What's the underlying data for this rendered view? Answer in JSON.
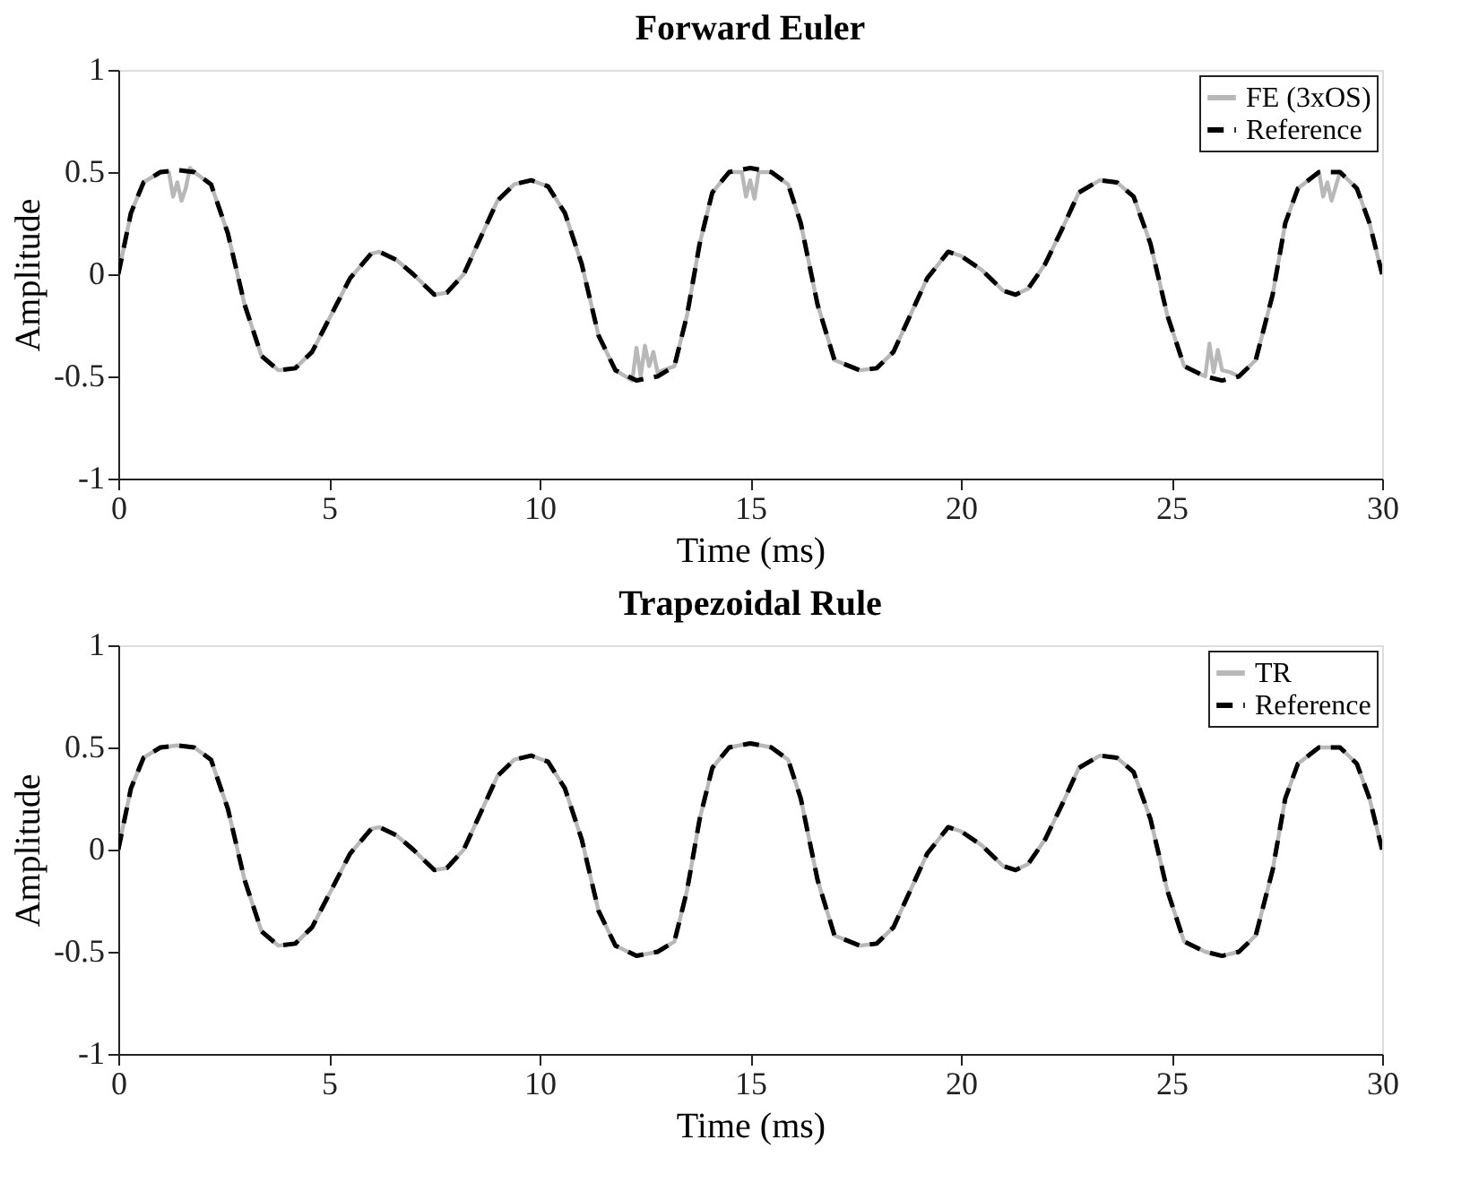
{
  "chart_data": [
    {
      "type": "line",
      "title": "Forward Euler",
      "xlabel": "Time (ms)",
      "ylabel": "Amplitude",
      "xlim": [
        0,
        30
      ],
      "ylim": [
        -1,
        1
      ],
      "xticks": [
        0,
        5,
        10,
        15,
        20,
        25,
        30
      ],
      "yticks": [
        -1,
        -0.5,
        0,
        0.5,
        1
      ],
      "grid": false,
      "legend": "top right",
      "series": [
        {
          "name": "FE (3xOS)",
          "color": "#b8b8b8",
          "line_style": "solid",
          "x": [
            0,
            0.3,
            0.6,
            1,
            1.2,
            1.3,
            1.4,
            1.5,
            1.6,
            1.7,
            1.8,
            2.2,
            2.6,
            3,
            3.4,
            3.8,
            4.2,
            4.6,
            5,
            5.5,
            6,
            6.2,
            6.6,
            7,
            7.5,
            7.8,
            8.2,
            8.6,
            9,
            9.4,
            9.8,
            10.2,
            10.6,
            11,
            11.4,
            11.8,
            12.2,
            12.3,
            12.4,
            12.5,
            12.6,
            12.7,
            12.8,
            13.2,
            13.5,
            13.8,
            14.1,
            14.5,
            14.8,
            14.9,
            15,
            15.1,
            15.2,
            15.5,
            15.9,
            16.2,
            16.6,
            17,
            17.6,
            18,
            18.4,
            18.8,
            19.2,
            19.7,
            20,
            20.5,
            21,
            21.3,
            21.6,
            22,
            22.4,
            22.8,
            23.3,
            23.7,
            24.1,
            24.5,
            24.9,
            25.3,
            25.8,
            25.9,
            26,
            26.1,
            26.2,
            26.4,
            26.6,
            27,
            27.4,
            27.7,
            28,
            28.5,
            28.6,
            28.7,
            28.8,
            29,
            29.4,
            29.7,
            30
          ],
          "values": [
            0,
            0.3,
            0.45,
            0.5,
            0.5,
            0.38,
            0.45,
            0.36,
            0.42,
            0.52,
            0.5,
            0.44,
            0.2,
            -0.15,
            -0.4,
            -0.47,
            -0.46,
            -0.38,
            -0.22,
            -0.02,
            0.1,
            0.11,
            0.07,
            0,
            -0.1,
            -0.09,
            0,
            0.18,
            0.36,
            0.44,
            0.46,
            0.43,
            0.3,
            0.05,
            -0.3,
            -0.47,
            -0.52,
            -0.36,
            -0.5,
            -0.35,
            -0.45,
            -0.38,
            -0.48,
            -0.45,
            -0.2,
            0.15,
            0.4,
            0.5,
            0.5,
            0.38,
            0.46,
            0.37,
            0.5,
            0.5,
            0.44,
            0.25,
            -0.15,
            -0.42,
            -0.47,
            -0.46,
            -0.38,
            -0.2,
            -0.02,
            0.11,
            0.09,
            0.02,
            -0.08,
            -0.1,
            -0.07,
            0.05,
            0.22,
            0.4,
            0.46,
            0.45,
            0.38,
            0.15,
            -0.2,
            -0.45,
            -0.5,
            -0.34,
            -0.48,
            -0.37,
            -0.47,
            -0.48,
            -0.5,
            -0.42,
            -0.1,
            0.25,
            0.42,
            0.5,
            0.38,
            0.45,
            0.36,
            0.5,
            0.42,
            0.25,
            0
          ]
        },
        {
          "name": "Reference",
          "color": "#000000",
          "line_style": "dashed",
          "x": [
            0,
            0.3,
            0.6,
            1,
            1.4,
            1.8,
            2.2,
            2.6,
            3,
            3.4,
            3.8,
            4.2,
            4.6,
            5,
            5.5,
            6,
            6.2,
            6.6,
            7,
            7.5,
            7.8,
            8.2,
            8.6,
            9,
            9.4,
            9.8,
            10.2,
            10.6,
            11,
            11.4,
            11.8,
            12.3,
            12.8,
            13.2,
            13.5,
            13.8,
            14.1,
            14.5,
            15,
            15.5,
            15.9,
            16.2,
            16.6,
            17,
            17.6,
            18,
            18.4,
            18.8,
            19.2,
            19.7,
            20,
            20.5,
            21,
            21.3,
            21.6,
            22,
            22.4,
            22.8,
            23.3,
            23.7,
            24.1,
            24.5,
            24.9,
            25.3,
            25.8,
            26.2,
            26.6,
            27,
            27.4,
            27.7,
            28,
            28.5,
            29,
            29.4,
            29.7,
            30
          ],
          "values": [
            0,
            0.3,
            0.45,
            0.5,
            0.51,
            0.5,
            0.44,
            0.2,
            -0.15,
            -0.4,
            -0.47,
            -0.46,
            -0.38,
            -0.22,
            -0.02,
            0.1,
            0.11,
            0.07,
            0,
            -0.1,
            -0.09,
            0,
            0.18,
            0.36,
            0.44,
            0.46,
            0.43,
            0.3,
            0.05,
            -0.3,
            -0.47,
            -0.52,
            -0.5,
            -0.45,
            -0.2,
            0.15,
            0.4,
            0.5,
            0.52,
            0.5,
            0.44,
            0.25,
            -0.15,
            -0.42,
            -0.47,
            -0.46,
            -0.38,
            -0.2,
            -0.02,
            0.11,
            0.09,
            0.02,
            -0.08,
            -0.1,
            -0.07,
            0.05,
            0.22,
            0.4,
            0.46,
            0.45,
            0.38,
            0.15,
            -0.2,
            -0.45,
            -0.5,
            -0.52,
            -0.5,
            -0.42,
            -0.1,
            0.25,
            0.42,
            0.5,
            0.5,
            0.42,
            0.25,
            0
          ]
        }
      ]
    },
    {
      "type": "line",
      "title": "Trapezoidal Rule",
      "xlabel": "Time (ms)",
      "ylabel": "Amplitude",
      "xlim": [
        0,
        30
      ],
      "ylim": [
        -1,
        1
      ],
      "xticks": [
        0,
        5,
        10,
        15,
        20,
        25,
        30
      ],
      "yticks": [
        -1,
        -0.5,
        0,
        0.5,
        1
      ],
      "grid": false,
      "legend": "top right",
      "series": [
        {
          "name": "TR",
          "color": "#b8b8b8",
          "line_style": "solid",
          "x": [
            0,
            0.3,
            0.6,
            1,
            1.4,
            1.8,
            2.2,
            2.6,
            3,
            3.4,
            3.8,
            4.2,
            4.6,
            5,
            5.5,
            6,
            6.2,
            6.6,
            7,
            7.5,
            7.8,
            8.2,
            8.6,
            9,
            9.4,
            9.8,
            10.2,
            10.6,
            11,
            11.4,
            11.8,
            12.3,
            12.8,
            13.2,
            13.5,
            13.8,
            14.1,
            14.5,
            15,
            15.5,
            15.9,
            16.2,
            16.6,
            17,
            17.6,
            18,
            18.4,
            18.8,
            19.2,
            19.7,
            20,
            20.5,
            21,
            21.3,
            21.6,
            22,
            22.4,
            22.8,
            23.3,
            23.7,
            24.1,
            24.5,
            24.9,
            25.3,
            25.8,
            26.2,
            26.6,
            27,
            27.4,
            27.7,
            28,
            28.5,
            29,
            29.4,
            29.7,
            30
          ],
          "values": [
            0,
            0.3,
            0.45,
            0.5,
            0.51,
            0.5,
            0.44,
            0.2,
            -0.15,
            -0.4,
            -0.47,
            -0.46,
            -0.38,
            -0.22,
            -0.02,
            0.1,
            0.11,
            0.07,
            0,
            -0.1,
            -0.09,
            0,
            0.18,
            0.36,
            0.44,
            0.46,
            0.43,
            0.3,
            0.05,
            -0.3,
            -0.47,
            -0.52,
            -0.5,
            -0.45,
            -0.2,
            0.15,
            0.4,
            0.5,
            0.52,
            0.5,
            0.44,
            0.25,
            -0.15,
            -0.42,
            -0.47,
            -0.46,
            -0.38,
            -0.2,
            -0.02,
            0.11,
            0.09,
            0.02,
            -0.08,
            -0.1,
            -0.07,
            0.05,
            0.22,
            0.4,
            0.46,
            0.45,
            0.38,
            0.15,
            -0.2,
            -0.45,
            -0.5,
            -0.52,
            -0.5,
            -0.42,
            -0.1,
            0.25,
            0.42,
            0.5,
            0.5,
            0.42,
            0.25,
            0
          ]
        },
        {
          "name": "Reference",
          "color": "#000000",
          "line_style": "dashed",
          "x": [
            0,
            0.3,
            0.6,
            1,
            1.4,
            1.8,
            2.2,
            2.6,
            3,
            3.4,
            3.8,
            4.2,
            4.6,
            5,
            5.5,
            6,
            6.2,
            6.6,
            7,
            7.5,
            7.8,
            8.2,
            8.6,
            9,
            9.4,
            9.8,
            10.2,
            10.6,
            11,
            11.4,
            11.8,
            12.3,
            12.8,
            13.2,
            13.5,
            13.8,
            14.1,
            14.5,
            15,
            15.5,
            15.9,
            16.2,
            16.6,
            17,
            17.6,
            18,
            18.4,
            18.8,
            19.2,
            19.7,
            20,
            20.5,
            21,
            21.3,
            21.6,
            22,
            22.4,
            22.8,
            23.3,
            23.7,
            24.1,
            24.5,
            24.9,
            25.3,
            25.8,
            26.2,
            26.6,
            27,
            27.4,
            27.7,
            28,
            28.5,
            29,
            29.4,
            29.7,
            30
          ],
          "values": [
            0,
            0.3,
            0.45,
            0.5,
            0.51,
            0.5,
            0.44,
            0.2,
            -0.15,
            -0.4,
            -0.47,
            -0.46,
            -0.38,
            -0.22,
            -0.02,
            0.1,
            0.11,
            0.07,
            0,
            -0.1,
            -0.09,
            0,
            0.18,
            0.36,
            0.44,
            0.46,
            0.43,
            0.3,
            0.05,
            -0.3,
            -0.47,
            -0.52,
            -0.5,
            -0.45,
            -0.2,
            0.15,
            0.4,
            0.5,
            0.52,
            0.5,
            0.44,
            0.25,
            -0.15,
            -0.42,
            -0.47,
            -0.46,
            -0.38,
            -0.2,
            -0.02,
            0.11,
            0.09,
            0.02,
            -0.08,
            -0.1,
            -0.07,
            0.05,
            0.22,
            0.4,
            0.46,
            0.45,
            0.38,
            0.15,
            -0.2,
            -0.45,
            -0.5,
            -0.52,
            -0.5,
            -0.42,
            -0.1,
            0.25,
            0.42,
            0.5,
            0.5,
            0.42,
            0.25,
            0
          ]
        }
      ]
    }
  ]
}
